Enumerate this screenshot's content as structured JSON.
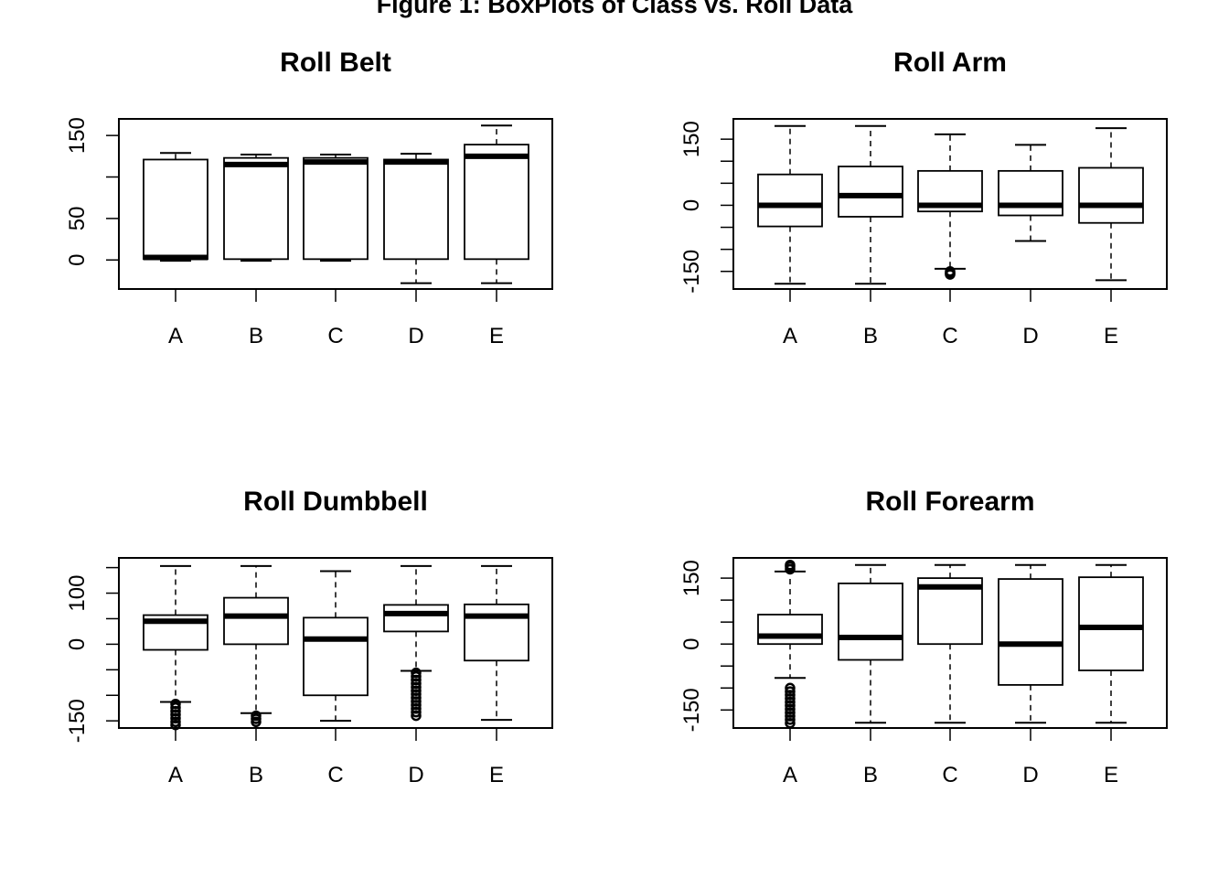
{
  "figure": {
    "title": "Figure 1: BoxPlots of Class vs. Roll Data"
  },
  "chart_data": [
    {
      "type": "boxplot",
      "title": "Roll Belt",
      "xlabel": "",
      "ylabel": "",
      "ylim": [
        -35,
        170
      ],
      "yticks": [
        0,
        50,
        100,
        150
      ],
      "ytick_labels": [
        "0",
        "50",
        "",
        "150"
      ],
      "categories": [
        "A",
        "B",
        "C",
        "D",
        "E"
      ],
      "boxes": [
        {
          "whisker_low": -1,
          "q1": 1,
          "median": 3,
          "q3": 121,
          "whisker_high": 129,
          "outliers": []
        },
        {
          "whisker_low": -1,
          "q1": 1,
          "median": 115,
          "q3": 123,
          "whisker_high": 127,
          "outliers": []
        },
        {
          "whisker_low": -1,
          "q1": 1,
          "median": 118,
          "q3": 123,
          "whisker_high": 127,
          "outliers": []
        },
        {
          "whisker_low": -28,
          "q1": 1,
          "median": 118,
          "q3": 121,
          "whisker_high": 128,
          "outliers": []
        },
        {
          "whisker_low": -28,
          "q1": 1,
          "median": 125,
          "q3": 139,
          "whisker_high": 162,
          "outliers": []
        }
      ]
    },
    {
      "type": "boxplot",
      "title": "Roll Arm",
      "xlabel": "",
      "ylabel": "",
      "ylim": [
        -190,
        196
      ],
      "yticks": [
        -150,
        -100,
        -50,
        0,
        50,
        100,
        150
      ],
      "ytick_labels": [
        "-150",
        "",
        "",
        "0",
        "",
        "",
        "150"
      ],
      "categories": [
        "A",
        "B",
        "C",
        "D",
        "E"
      ],
      "boxes": [
        {
          "whisker_low": -178,
          "q1": -48,
          "median": 0,
          "q3": 70,
          "whisker_high": 180,
          "outliers": []
        },
        {
          "whisker_low": -178,
          "q1": -26,
          "median": 22,
          "q3": 88,
          "whisker_high": 180,
          "outliers": []
        },
        {
          "whisker_low": -144,
          "q1": -14,
          "median": 0,
          "q3": 78,
          "whisker_high": 161,
          "outliers": [
            -150,
            -153,
            -155,
            -157
          ]
        },
        {
          "whisker_low": -81,
          "q1": -23,
          "median": 0,
          "q3": 78,
          "whisker_high": 137,
          "outliers": []
        },
        {
          "whisker_low": -170,
          "q1": -40,
          "median": 0,
          "q3": 85,
          "whisker_high": 175,
          "outliers": []
        }
      ]
    },
    {
      "type": "boxplot",
      "title": "Roll Dumbbell",
      "xlabel": "",
      "ylabel": "",
      "ylim": [
        -164,
        169
      ],
      "yticks": [
        -150,
        -100,
        -50,
        0,
        50,
        100,
        150
      ],
      "ytick_labels": [
        "-150",
        "",
        "",
        "0",
        "",
        "100",
        ""
      ],
      "categories": [
        "A",
        "B",
        "C",
        "D",
        "E"
      ],
      "boxes": [
        {
          "whisker_low": -113,
          "q1": -11,
          "median": 45,
          "q3": 57,
          "whisker_high": 153,
          "outliers": [
            -117,
            -124,
            -131,
            -138,
            -145,
            -152,
            -158
          ]
        },
        {
          "whisker_low": -135,
          "q1": 0,
          "median": 55,
          "q3": 91,
          "whisker_high": 153,
          "outliers": [
            -140,
            -146,
            -152
          ]
        },
        {
          "whisker_low": -150,
          "q1": -100,
          "median": 10,
          "q3": 52,
          "whisker_high": 143,
          "outliers": []
        },
        {
          "whisker_low": -52,
          "q1": 25,
          "median": 60,
          "q3": 77,
          "whisker_high": 153,
          "outliers": [
            -56,
            -63,
            -70,
            -77,
            -84,
            -91,
            -98,
            -105,
            -112,
            -119,
            -126,
            -133,
            -140
          ]
        },
        {
          "whisker_low": -148,
          "q1": -32,
          "median": 55,
          "q3": 78,
          "whisker_high": 153,
          "outliers": []
        }
      ]
    },
    {
      "type": "boxplot",
      "title": "Roll Forearm",
      "xlabel": "",
      "ylabel": "",
      "ylim": [
        -191,
        196
      ],
      "yticks": [
        -150,
        -100,
        -50,
        0,
        50,
        100,
        150
      ],
      "ytick_labels": [
        "-150",
        "",
        "",
        "0",
        "",
        "",
        "150"
      ],
      "categories": [
        "A",
        "B",
        "C",
        "D",
        "E"
      ],
      "boxes": [
        {
          "whisker_low": -77,
          "q1": 0,
          "median": 18,
          "q3": 67,
          "whisker_high": 165,
          "outliers": [
            170,
            176,
            180,
            -100,
            -108,
            -116,
            -124,
            -132,
            -140,
            -148,
            -156,
            -164,
            -172,
            -180
          ]
        },
        {
          "whisker_low": -179,
          "q1": -36,
          "median": 15,
          "q3": 138,
          "whisker_high": 180,
          "outliers": []
        },
        {
          "whisker_low": -179,
          "q1": 0,
          "median": 130,
          "q3": 150,
          "whisker_high": 180,
          "outliers": []
        },
        {
          "whisker_low": -179,
          "q1": -93,
          "median": 0,
          "q3": 148,
          "whisker_high": 180,
          "outliers": []
        },
        {
          "whisker_low": -179,
          "q1": -60,
          "median": 38,
          "q3": 152,
          "whisker_high": 180,
          "outliers": []
        }
      ]
    }
  ]
}
